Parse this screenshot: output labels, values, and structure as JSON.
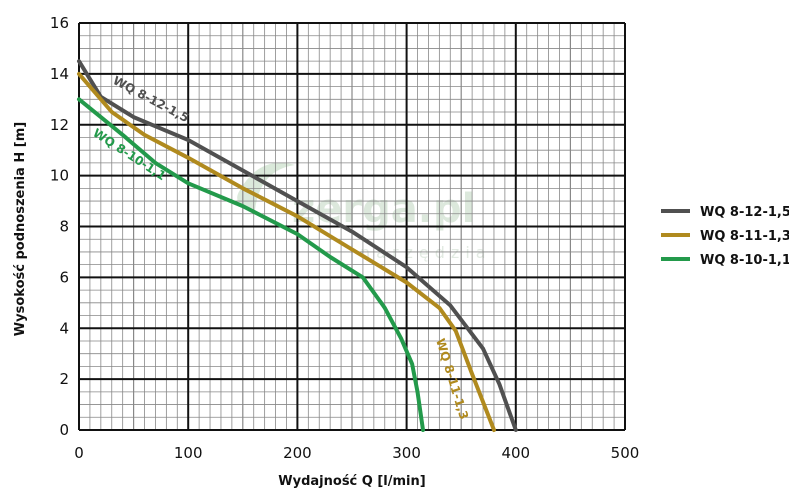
{
  "watermark": {
    "brand": "zerga.pl",
    "tagline": "narzędzia"
  },
  "chart_data": {
    "type": "line",
    "xlabel": "Wydajność Q [l/min]",
    "ylabel": "Wysokość podnoszenia H [m]",
    "xlim": [
      0,
      500
    ],
    "ylim": [
      0,
      16
    ],
    "xticks": [
      "0",
      "100",
      "200",
      "300",
      "400",
      "500"
    ],
    "yticks": [
      "0",
      "2",
      "4",
      "6",
      "8",
      "10",
      "12",
      "14",
      "16"
    ],
    "grid": true,
    "legend_position": "right",
    "series": [
      {
        "name": "WQ 8-12-1,5",
        "color": "#505050",
        "x": [
          0,
          20,
          50,
          100,
          150,
          200,
          250,
          300,
          340,
          370,
          385,
          400
        ],
        "y": [
          14.5,
          13.1,
          12.3,
          11.4,
          10.2,
          9.0,
          7.8,
          6.4,
          4.9,
          3.2,
          1.8,
          0
        ]
      },
      {
        "name": "WQ 8-11-1,3",
        "color": "#b08a1e",
        "x": [
          0,
          30,
          60,
          100,
          150,
          200,
          250,
          300,
          330,
          345,
          360,
          380
        ],
        "y": [
          14.0,
          12.5,
          11.6,
          10.7,
          9.5,
          8.4,
          7.1,
          5.8,
          4.8,
          3.9,
          2.2,
          0
        ]
      },
      {
        "name": "WQ 8-10-1,1",
        "color": "#239a4b",
        "x": [
          0,
          40,
          70,
          100,
          150,
          200,
          230,
          260,
          280,
          295,
          305,
          310,
          315
        ],
        "y": [
          13.0,
          11.6,
          10.5,
          9.7,
          8.8,
          7.7,
          6.8,
          6.0,
          4.8,
          3.6,
          2.6,
          1.5,
          0
        ]
      }
    ]
  }
}
